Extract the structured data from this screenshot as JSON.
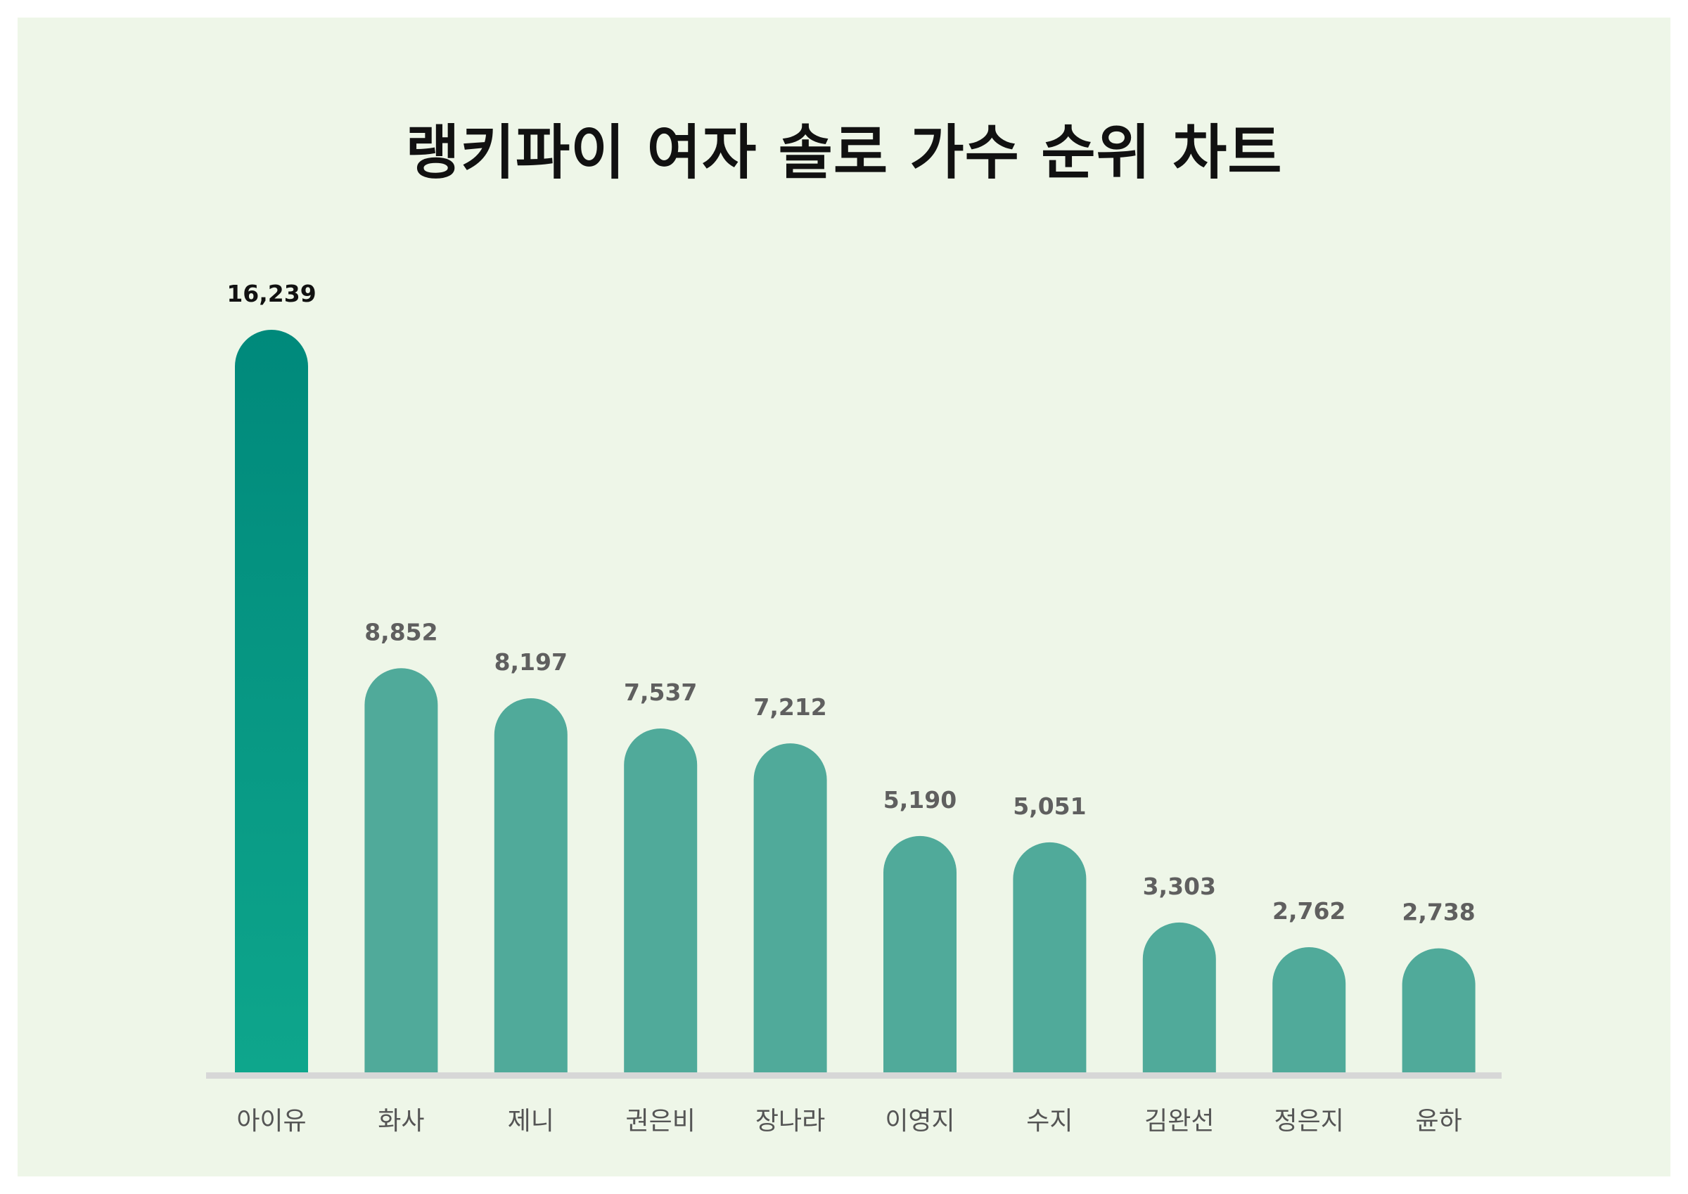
{
  "chart_data": {
    "type": "bar",
    "title": "랭키파이 여자 솔로 가수 순위 차트",
    "categories": [
      "아이유",
      "화사",
      "제니",
      "권은비",
      "장나라",
      "이영지",
      "수지",
      "김완선",
      "정은지",
      "윤하"
    ],
    "values": [
      16239,
      8852,
      8197,
      7537,
      7212,
      5190,
      5051,
      3303,
      2762,
      2738
    ],
    "value_labels": [
      "16,239",
      "8,852",
      "8,197",
      "7,537",
      "7,212",
      "5,190",
      "5,051",
      "3,303",
      "2,762",
      "2,738"
    ],
    "xlabel": "",
    "ylabel": "",
    "ylim": [
      0,
      16239
    ],
    "grid": false,
    "legend": "none",
    "colors": {
      "background": "#eef6e8",
      "highlight_top": "#00897b",
      "highlight_bottom": "#0ea68c",
      "bar": "#50aa9a",
      "baseline": "#d7d7d7",
      "top_value_text": "#111111",
      "value_text": "#5f5f5f",
      "category_text": "#555555"
    }
  }
}
